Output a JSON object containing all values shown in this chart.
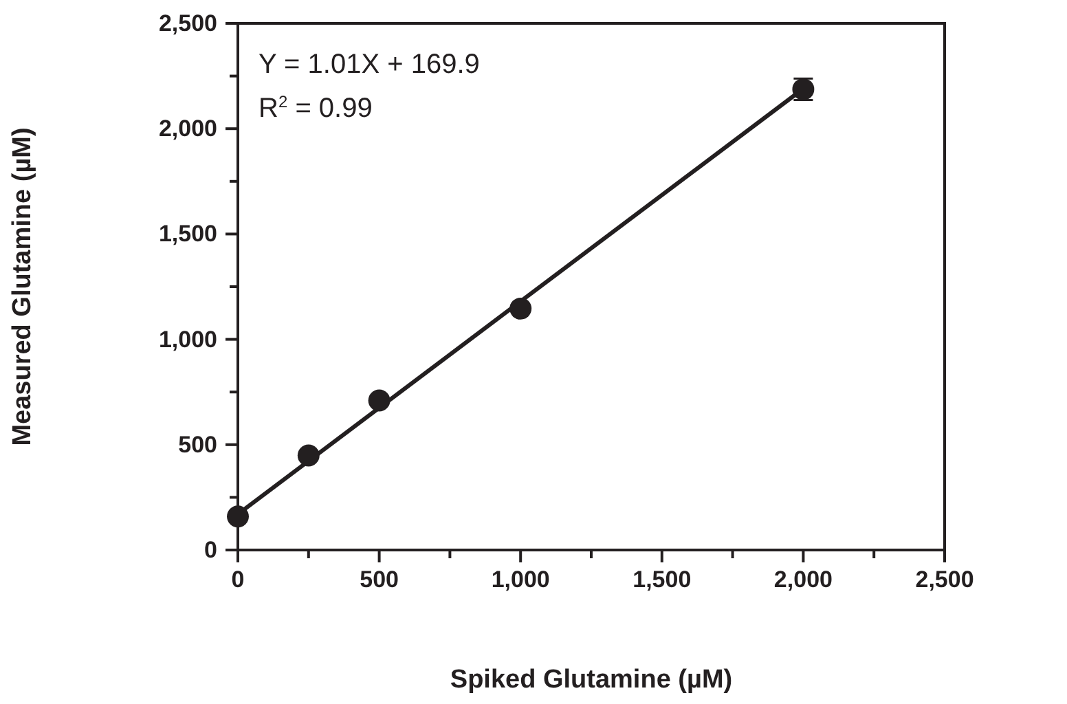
{
  "chart_data": {
    "type": "scatter",
    "xlabel": "Spiked Glutamine (µM)",
    "ylabel": "Measured Glutamine (µM)",
    "annotations": [
      "Y = 1.01X + 169.9",
      "R$^{2}$ = 0.99"
    ],
    "xlim": [
      0,
      2500
    ],
    "ylim": [
      0,
      2500
    ],
    "xticks": [
      {
        "value": 0,
        "label": "0"
      },
      {
        "value": 250,
        "label": null
      },
      {
        "value": 500,
        "label": "500"
      },
      {
        "value": 750,
        "label": null
      },
      {
        "value": 1000,
        "label": "1,000"
      },
      {
        "value": 1250,
        "label": null
      },
      {
        "value": 1500,
        "label": "1,500"
      },
      {
        "value": 1750,
        "label": null
      },
      {
        "value": 2000,
        "label": "2,000"
      },
      {
        "value": 2250,
        "label": null
      },
      {
        "value": 2500,
        "label": "2,500"
      }
    ],
    "yticks": [
      {
        "value": 0,
        "label": "0"
      },
      {
        "value": 250,
        "label": null
      },
      {
        "value": 500,
        "label": "500"
      },
      {
        "value": 750,
        "label": null
      },
      {
        "value": 1000,
        "label": "1,000"
      },
      {
        "value": 1250,
        "label": null
      },
      {
        "value": 1500,
        "label": "1,500"
      },
      {
        "value": 1750,
        "label": null
      },
      {
        "value": 2000,
        "label": "2,000"
      },
      {
        "value": 2250,
        "label": null
      },
      {
        "value": 2500,
        "label": "2,500"
      }
    ],
    "grid": false,
    "series": [
      {
        "color": "#231f20",
        "marker": "circle",
        "x": [
          0,
          250,
          500,
          1000,
          2000
        ],
        "values": [
          159,
          449,
          710,
          1146,
          2187
        ],
        "errors": [
          null,
          null,
          null,
          null,
          51
        ]
      },
      {
        "type": "line",
        "color": "#231f20",
        "x": [
          0,
          2000
        ],
        "values": [
          170,
          2190
        ],
        "line_style": "solid"
      }
    ]
  }
}
